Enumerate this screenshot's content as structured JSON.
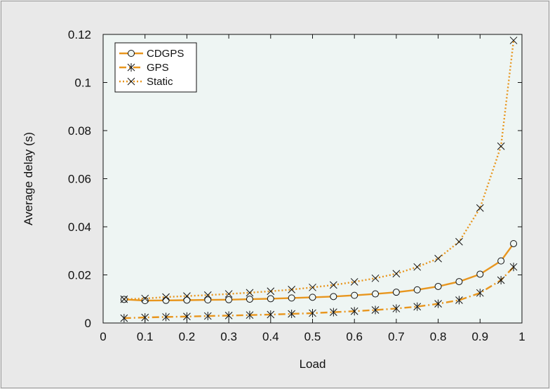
{
  "chart_data": {
    "type": "line",
    "title": "",
    "xlabel": "Load",
    "ylabel": "Average delay (s)",
    "xlim": [
      0,
      1
    ],
    "ylim": [
      0,
      0.12
    ],
    "x_ticks": [
      "0",
      "0.1",
      "0.2",
      "0.3",
      "0.4",
      "0.5",
      "0.6",
      "0.7",
      "0.8",
      "0.9",
      "1"
    ],
    "y_ticks": [
      "0",
      "0.02",
      "0.04",
      "0.06",
      "0.08",
      "0.1",
      "0.12"
    ],
    "grid": false,
    "legend_position": "top-left",
    "plot_background": "#eef5f3",
    "x": [
      0.05,
      0.1,
      0.15,
      0.2,
      0.25,
      0.3,
      0.35,
      0.4,
      0.45,
      0.5,
      0.55,
      0.6,
      0.65,
      0.7,
      0.75,
      0.8,
      0.85,
      0.9,
      0.95,
      0.98
    ],
    "series": [
      {
        "name": "CDGPS",
        "color": "#e8961e",
        "line_style": "solid",
        "marker": "circle",
        "values": [
          0.0098,
          0.0093,
          0.0094,
          0.0095,
          0.0096,
          0.0097,
          0.0099,
          0.0101,
          0.0104,
          0.0107,
          0.011,
          0.0115,
          0.0121,
          0.0128,
          0.0138,
          0.0152,
          0.0172,
          0.0203,
          0.0258,
          0.033
        ]
      },
      {
        "name": "GPS",
        "color": "#e8961e",
        "line_style": "dashdot",
        "marker": "asterisk",
        "values": [
          0.002,
          0.0023,
          0.0025,
          0.0027,
          0.0029,
          0.0031,
          0.0033,
          0.0035,
          0.0038,
          0.0041,
          0.0045,
          0.0049,
          0.0054,
          0.006,
          0.0068,
          0.008,
          0.0095,
          0.0125,
          0.0178,
          0.0233
        ]
      },
      {
        "name": "Static",
        "color": "#e8961e",
        "line_style": "dotted",
        "marker": "x",
        "values": [
          0.0099,
          0.0102,
          0.0108,
          0.0112,
          0.0116,
          0.0121,
          0.0126,
          0.0132,
          0.0139,
          0.0148,
          0.0158,
          0.0171,
          0.0186,
          0.0205,
          0.0233,
          0.0268,
          0.0338,
          0.0478,
          0.0735,
          0.1175
        ]
      }
    ]
  }
}
